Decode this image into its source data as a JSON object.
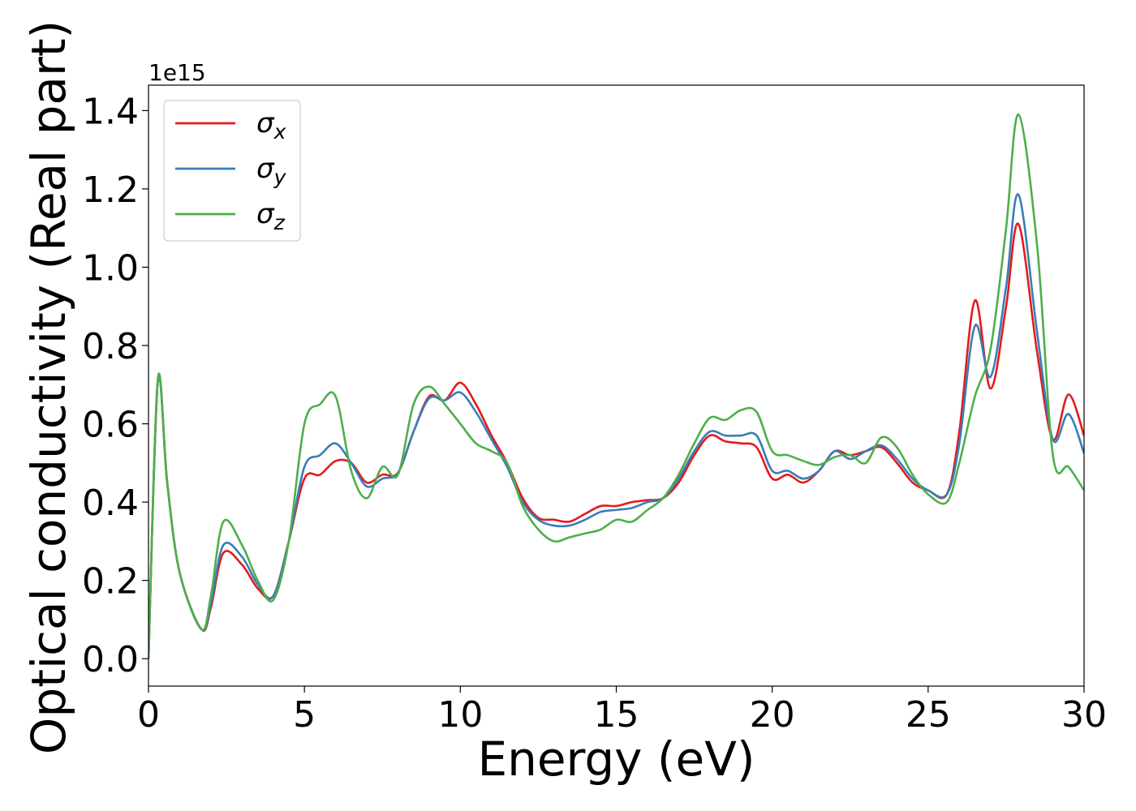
{
  "chart_data": {
    "type": "line",
    "xlabel": "Energy (eV)",
    "ylabel": "Optical conductivity (Real part)",
    "y_offset_label": "1e15",
    "xlim": [
      0,
      30
    ],
    "ylim": [
      -0.07,
      1.465
    ],
    "x_ticks": [
      0,
      5,
      10,
      15,
      20,
      25,
      30
    ],
    "x_tick_labels": [
      "0",
      "5",
      "10",
      "15",
      "20",
      "25",
      "30"
    ],
    "y_ticks": [
      0.0,
      0.2,
      0.4,
      0.6,
      0.8,
      1.0,
      1.2,
      1.4
    ],
    "y_tick_labels": [
      "0.0",
      "0.2",
      "0.4",
      "0.6",
      "0.8",
      "1.0",
      "1.2",
      "1.4"
    ],
    "grid": false,
    "legend_position": "upper-left",
    "series": [
      {
        "name": "σx",
        "base": "σ",
        "sub": "x",
        "color": "#e41a1c",
        "x": [
          0,
          0.3,
          0.6,
          1.0,
          1.7,
          2.0,
          2.4,
          3.0,
          3.5,
          4.0,
          4.5,
          5.0,
          5.5,
          6.0,
          6.5,
          7.0,
          7.5,
          8.0,
          8.5,
          9.0,
          9.5,
          10.0,
          10.5,
          11.0,
          11.5,
          12.0,
          12.5,
          13.0,
          13.5,
          14.0,
          14.5,
          15.0,
          15.5,
          16.0,
          16.5,
          17.0,
          17.5,
          18.0,
          18.5,
          19.0,
          19.5,
          20.0,
          20.5,
          21.0,
          21.5,
          22.0,
          22.5,
          23.0,
          23.5,
          24.0,
          24.5,
          25.0,
          25.6,
          26.0,
          26.5,
          27.0,
          27.5,
          27.9,
          28.5,
          29.0,
          29.5,
          30.0
        ],
        "values": [
          0.0,
          0.71,
          0.45,
          0.22,
          0.075,
          0.13,
          0.27,
          0.24,
          0.18,
          0.16,
          0.3,
          0.46,
          0.47,
          0.505,
          0.5,
          0.45,
          0.47,
          0.475,
          0.58,
          0.67,
          0.66,
          0.705,
          0.65,
          0.57,
          0.5,
          0.41,
          0.36,
          0.355,
          0.35,
          0.37,
          0.39,
          0.39,
          0.4,
          0.405,
          0.41,
          0.45,
          0.52,
          0.57,
          0.555,
          0.55,
          0.54,
          0.46,
          0.47,
          0.45,
          0.48,
          0.53,
          0.52,
          0.53,
          0.54,
          0.5,
          0.45,
          0.43,
          0.42,
          0.58,
          0.915,
          0.69,
          0.9,
          1.11,
          0.78,
          0.56,
          0.675,
          0.57
        ]
      },
      {
        "name": "σy",
        "base": "σ",
        "sub": "y",
        "color": "#377eb8",
        "x": [
          0,
          0.3,
          0.6,
          1.0,
          1.7,
          2.0,
          2.4,
          3.0,
          3.5,
          4.0,
          4.5,
          5.0,
          5.5,
          6.0,
          6.5,
          7.0,
          7.5,
          8.0,
          8.5,
          9.0,
          9.5,
          10.0,
          10.5,
          11.0,
          11.5,
          12.0,
          12.5,
          13.0,
          13.5,
          14.0,
          14.5,
          15.0,
          15.5,
          16.0,
          16.5,
          17.0,
          17.5,
          18.0,
          18.5,
          19.0,
          19.5,
          20.0,
          20.5,
          21.0,
          21.5,
          22.0,
          22.5,
          23.0,
          23.5,
          24.0,
          24.5,
          25.0,
          25.6,
          26.0,
          26.5,
          27.0,
          27.5,
          27.9,
          28.5,
          29.0,
          29.5,
          30.0
        ],
        "values": [
          0.0,
          0.71,
          0.45,
          0.22,
          0.075,
          0.14,
          0.29,
          0.26,
          0.19,
          0.16,
          0.3,
          0.49,
          0.52,
          0.55,
          0.5,
          0.44,
          0.46,
          0.475,
          0.58,
          0.665,
          0.66,
          0.68,
          0.63,
          0.56,
          0.49,
          0.4,
          0.355,
          0.34,
          0.34,
          0.355,
          0.375,
          0.38,
          0.385,
          0.4,
          0.41,
          0.46,
          0.53,
          0.58,
          0.57,
          0.57,
          0.57,
          0.48,
          0.48,
          0.46,
          0.48,
          0.53,
          0.51,
          0.53,
          0.545,
          0.51,
          0.46,
          0.43,
          0.42,
          0.55,
          0.85,
          0.72,
          0.95,
          1.185,
          0.83,
          0.56,
          0.625,
          0.525
        ]
      },
      {
        "name": "σz",
        "base": "σ",
        "sub": "z",
        "color": "#4daf4a",
        "x": [
          0,
          0.3,
          0.6,
          1.0,
          1.7,
          2.0,
          2.4,
          3.0,
          3.5,
          4.0,
          4.5,
          5.0,
          5.5,
          6.0,
          6.5,
          7.0,
          7.5,
          8.0,
          8.5,
          9.0,
          9.5,
          10.0,
          10.5,
          11.0,
          11.5,
          12.0,
          12.5,
          13.0,
          13.5,
          14.0,
          14.5,
          15.0,
          15.5,
          16.0,
          16.5,
          17.0,
          17.5,
          18.0,
          18.5,
          19.0,
          19.5,
          20.0,
          20.5,
          21.0,
          21.5,
          22.0,
          22.5,
          23.0,
          23.5,
          24.0,
          24.5,
          25.0,
          25.6,
          26.0,
          26.5,
          27.0,
          27.5,
          27.9,
          28.5,
          29.0,
          29.5,
          30.0
        ],
        "values": [
          0.0,
          0.715,
          0.45,
          0.22,
          0.075,
          0.16,
          0.35,
          0.29,
          0.2,
          0.15,
          0.3,
          0.6,
          0.65,
          0.67,
          0.48,
          0.41,
          0.49,
          0.47,
          0.65,
          0.695,
          0.65,
          0.6,
          0.55,
          0.53,
          0.5,
          0.39,
          0.33,
          0.3,
          0.31,
          0.32,
          0.33,
          0.355,
          0.35,
          0.38,
          0.41,
          0.47,
          0.55,
          0.615,
          0.61,
          0.635,
          0.63,
          0.53,
          0.52,
          0.505,
          0.495,
          0.515,
          0.52,
          0.5,
          0.565,
          0.54,
          0.47,
          0.42,
          0.4,
          0.5,
          0.67,
          0.79,
          1.1,
          1.39,
          1.05,
          0.52,
          0.49,
          0.43
        ]
      }
    ]
  }
}
